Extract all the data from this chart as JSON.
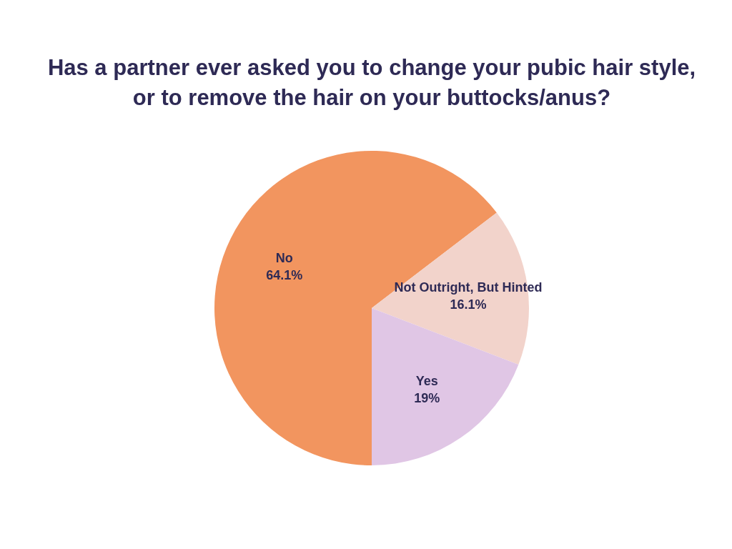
{
  "chart_data": {
    "type": "pie",
    "title": "Has a partner ever asked you to change your pubic hair style, or to remove the hair on your buttocks/anus?",
    "categories": [
      "No",
      "Not Outright, But Hinted",
      "Yes"
    ],
    "values": [
      64.1,
      16.1,
      19
    ],
    "colors": [
      "#f2955f",
      "#f2d3cb",
      "#e0c6e5"
    ],
    "value_labels": [
      "64.1%",
      "16.1%",
      "19%"
    ]
  }
}
